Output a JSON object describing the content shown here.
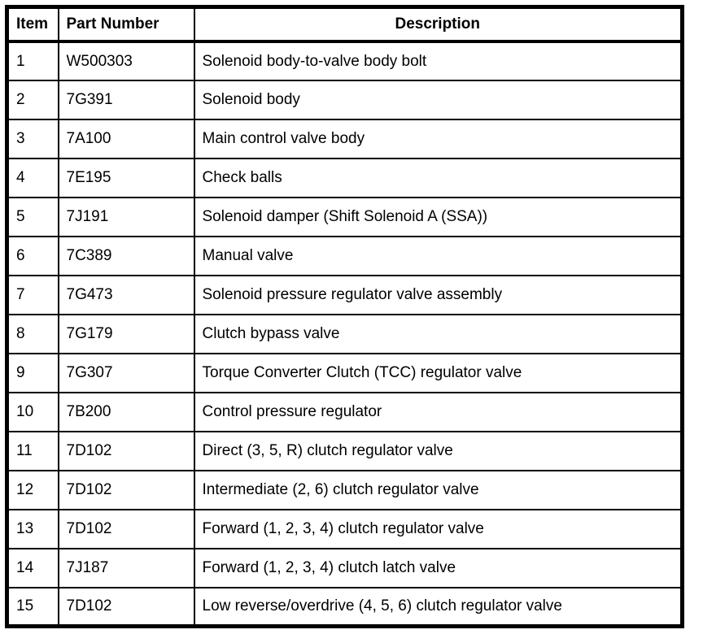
{
  "table": {
    "columns": [
      {
        "label": "Item"
      },
      {
        "label": "Part Number"
      },
      {
        "label": "Description"
      }
    ],
    "rows": [
      {
        "item": "1",
        "part_number": "W500303",
        "description": "Solenoid body-to-valve body bolt"
      },
      {
        "item": "2",
        "part_number": "7G391",
        "description": "Solenoid body"
      },
      {
        "item": "3",
        "part_number": "7A100",
        "description": "Main control valve body"
      },
      {
        "item": "4",
        "part_number": "7E195",
        "description": "Check balls"
      },
      {
        "item": "5",
        "part_number": "7J191",
        "description": "Solenoid damper (Shift Solenoid A (SSA))"
      },
      {
        "item": "6",
        "part_number": "7C389",
        "description": "Manual valve"
      },
      {
        "item": "7",
        "part_number": "7G473",
        "description": "Solenoid pressure regulator valve assembly"
      },
      {
        "item": "8",
        "part_number": "7G179",
        "description": "Clutch bypass valve"
      },
      {
        "item": "9",
        "part_number": "7G307",
        "description": "Torque Converter Clutch (TCC) regulator valve"
      },
      {
        "item": "10",
        "part_number": "7B200",
        "description": "Control pressure regulator"
      },
      {
        "item": "11",
        "part_number": "7D102",
        "description": "Direct (3, 5, R) clutch regulator valve"
      },
      {
        "item": "12",
        "part_number": "7D102",
        "description": "Intermediate (2, 6) clutch regulator valve"
      },
      {
        "item": "13",
        "part_number": "7D102",
        "description": "Forward (1, 2, 3, 4) clutch regulator valve"
      },
      {
        "item": "14",
        "part_number": "7J187",
        "description": "Forward (1, 2, 3, 4) clutch latch valve"
      },
      {
        "item": "15",
        "part_number": "7D102",
        "description": "Low reverse/overdrive (4, 5, 6) clutch regulator valve"
      }
    ]
  }
}
